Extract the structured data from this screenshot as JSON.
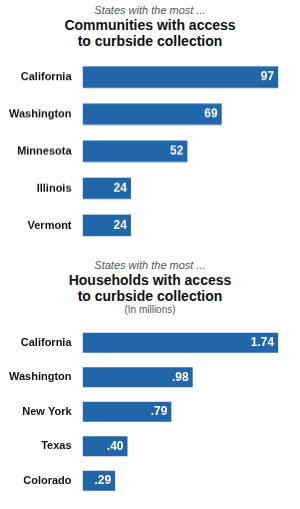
{
  "chart_data": [
    {
      "type": "bar",
      "orientation": "horizontal",
      "subtitle": "States with the most ...",
      "title": "Communities with access\nto curbside collection",
      "categories": [
        "California",
        "Washington",
        "Minnesota",
        "Illinois",
        "Vermont"
      ],
      "values": [
        97,
        69,
        52,
        24,
        24
      ],
      "color": "#2266aa",
      "xlim": [
        0,
        100.88
      ],
      "grid": false,
      "data_labels": true,
      "tick_labels": "y"
    },
    {
      "type": "bar",
      "orientation": "horizontal",
      "subtitle": "States with the most ...",
      "title": "Households with access\nto curbside collection",
      "annotations": [
        "(In millions)"
      ],
      "categories": [
        "California",
        "Washington",
        "New York",
        "Texas",
        "Colorado"
      ],
      "values": [
        1.74,
        0.98,
        0.79,
        0.4,
        0.29
      ],
      "value_labels": [
        "1.74",
        ".98",
        ".79",
        ".40",
        ".29"
      ],
      "color": "#2266aa",
      "xlim": [
        0,
        1.8096
      ],
      "grid": false,
      "data_labels": true,
      "tick_labels": "y"
    }
  ]
}
